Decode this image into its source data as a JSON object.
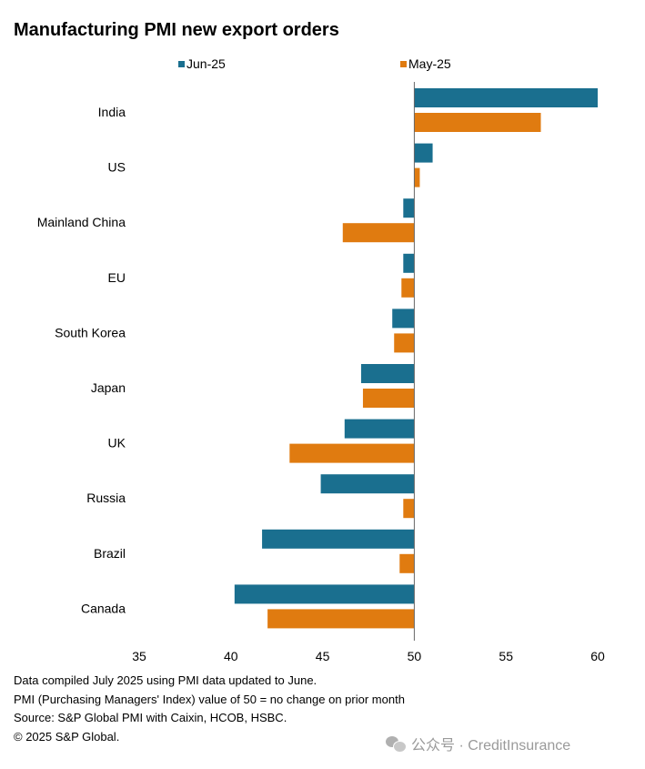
{
  "chart_data": {
    "type": "bar",
    "orientation": "horizontal",
    "title": "Manufacturing PMI new export orders",
    "categories": [
      "India",
      "US",
      "Mainland China",
      "EU",
      "South Korea",
      "Japan",
      "UK",
      "Russia",
      "Brazil",
      "Canada"
    ],
    "series": [
      {
        "name": "Jun-25",
        "color": "#1a6f8f",
        "values": [
          60.0,
          51.0,
          49.4,
          49.4,
          48.8,
          47.1,
          46.2,
          44.9,
          41.7,
          40.2
        ]
      },
      {
        "name": "May-25",
        "color": "#e07b10",
        "values": [
          56.9,
          50.3,
          46.1,
          49.3,
          48.9,
          47.2,
          43.2,
          49.4,
          49.2,
          42.0
        ]
      }
    ],
    "baseline": 50,
    "xlim": [
      35,
      60
    ],
    "xticks": [
      35,
      40,
      45,
      50,
      55,
      60
    ],
    "legend_position": "top",
    "grid": false
  },
  "footnotes": [
    "Data compiled July 2025 using PMI data updated to June.",
    "PMI (Purchasing Managers' Index) value of 50 = no change on prior month",
    "Source: S&P Global PMI with Caixin, HCOB, HSBC.",
    "© 2025 S&P Global."
  ],
  "watermark": {
    "icon": "wechat-icon",
    "text": "公众号 · CreditInsurance"
  }
}
